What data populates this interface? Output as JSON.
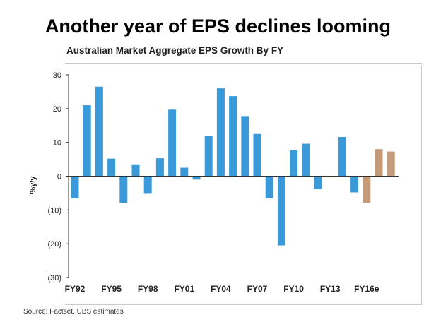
{
  "headline": "Another year of EPS declines looming",
  "source": "Source: Factset, UBS estimates",
  "colors": {
    "actual": "#3a9ad9",
    "estimate": "#c49a78",
    "axis": "#333333"
  },
  "chart_data": {
    "type": "bar",
    "title": "Australian Market Aggregate EPS Growth By FY",
    "xlabel": "",
    "ylabel": "% y/y",
    "ylim": [
      -30,
      30
    ],
    "yticks": [
      30,
      20,
      10,
      0,
      -10,
      -20,
      -30
    ],
    "ytick_labels": [
      "30",
      "20",
      "10",
      "0",
      "(10)",
      "(20)",
      "(30)"
    ],
    "grid": false,
    "legend": "none",
    "categories": [
      "FY92",
      "FY93",
      "FY94",
      "FY95",
      "FY96",
      "FY97",
      "FY98",
      "FY99",
      "FY00",
      "FY01",
      "FY02",
      "FY03",
      "FY04",
      "FY05",
      "FY06",
      "FY07",
      "FY08",
      "FY09",
      "FY10",
      "FY11",
      "FY12",
      "FY13",
      "FY14",
      "FY15",
      "FY16e",
      "FY17e"
    ],
    "xtick_labels": [
      "FY92",
      "",
      "",
      "FY95",
      "",
      "",
      "FY98",
      "",
      "",
      "FY01",
      "",
      "",
      "FY04",
      "",
      "",
      "FY07",
      "",
      "",
      "FY10",
      "",
      "",
      "FY13",
      "",
      "",
      "FY16e",
      ""
    ],
    "values": [
      -6.5,
      21,
      26.5,
      5.2,
      -8,
      3.5,
      -5,
      5.3,
      19.7,
      2.5,
      -1,
      12,
      26,
      23.7,
      17.8,
      12.5,
      -6.5,
      -20.5,
      7.7,
      9.6,
      -3.8,
      -0.3,
      11.6,
      -4.8,
      -8,
      8
    ],
    "estimate_flags": [
      false,
      false,
      false,
      false,
      false,
      false,
      false,
      false,
      false,
      false,
      false,
      false,
      false,
      false,
      false,
      false,
      false,
      false,
      false,
      false,
      false,
      false,
      false,
      false,
      true,
      true
    ],
    "values_last_note": "",
    "extra_estimate_value": 7.3
  }
}
